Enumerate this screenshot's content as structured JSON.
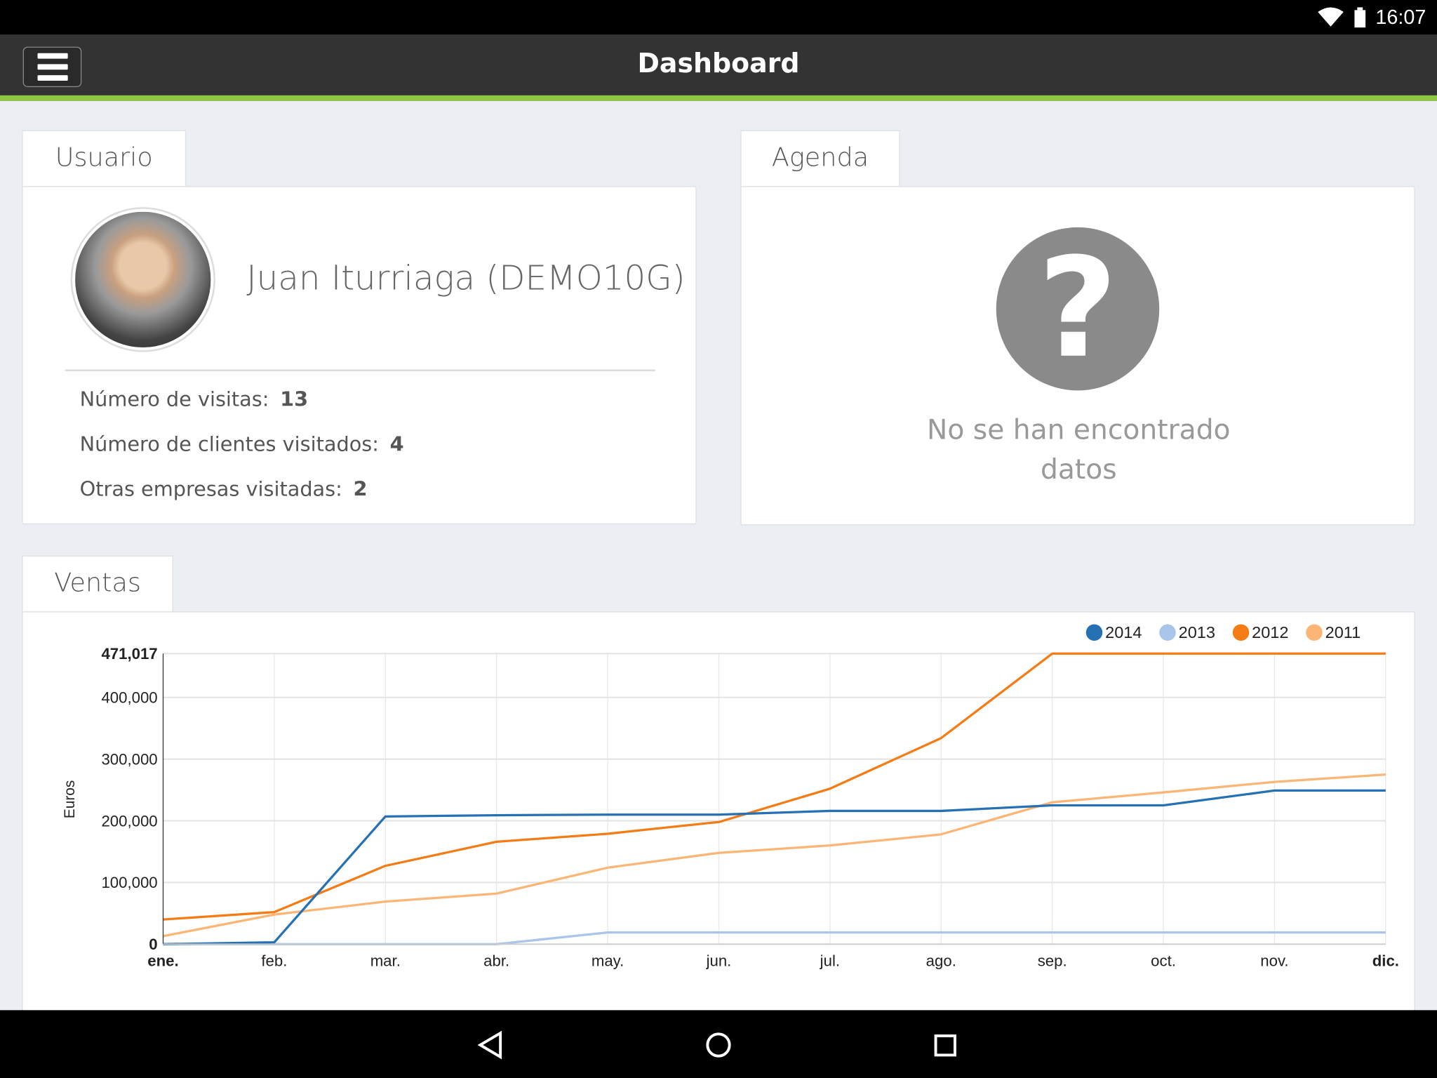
{
  "status_bar": {
    "time": "16:07",
    "icons": [
      "wifi-icon",
      "battery-icon"
    ]
  },
  "app_bar": {
    "title": "Dashboard",
    "menu_icon": "hamburger-menu-icon"
  },
  "usuario": {
    "tab_label": "Usuario",
    "name": "Juan Iturriaga (DEMO10G)",
    "stats": [
      {
        "label": "Número de visitas:",
        "value": "13"
      },
      {
        "label": "Número de clientes visitados:",
        "value": "4"
      },
      {
        "label": "Otras empresas visitadas:",
        "value": "2"
      }
    ]
  },
  "agenda": {
    "tab_label": "Agenda",
    "icon": "question-mark-icon",
    "empty_line1": "No se han encontrado",
    "empty_line2": "datos"
  },
  "ventas": {
    "tab_label": "Ventas"
  },
  "chart_data": {
    "type": "line",
    "ylabel": "Euros",
    "xlabel": "",
    "categories": [
      "ene.",
      "feb.",
      "mar.",
      "abr.",
      "may.",
      "jun.",
      "jul.",
      "ago.",
      "sep.",
      "oct.",
      "nov.",
      "dic."
    ],
    "ylim": [
      0,
      471017
    ],
    "yticks": [
      "0",
      "100,000",
      "200,000",
      "300,000",
      "400,000",
      "471,017"
    ],
    "ytick_values": [
      0,
      100000,
      200000,
      300000,
      400000,
      471017
    ],
    "grid": true,
    "legend_position": "top-right",
    "series": [
      {
        "name": "2014",
        "color": "#2571b3",
        "values": [
          0,
          3000,
          207000,
          209000,
          210000,
          210000,
          216000,
          216000,
          225000,
          225000,
          249000,
          249000
        ]
      },
      {
        "name": "2013",
        "color": "#a9c5ea",
        "values": [
          0,
          0,
          0,
          0,
          19000,
          19000,
          19000,
          19000,
          19000,
          19000,
          19000,
          19000
        ]
      },
      {
        "name": "2012",
        "color": "#f57c15",
        "values": [
          40000,
          52000,
          127000,
          166000,
          179000,
          198000,
          252000,
          334000,
          471017,
          471017,
          471017,
          471017
        ]
      },
      {
        "name": "2011",
        "color": "#fbb676",
        "values": [
          13000,
          48000,
          69000,
          82000,
          124000,
          148000,
          160000,
          178000,
          230000,
          246000,
          263000,
          275000
        ]
      }
    ]
  },
  "nav_bar": {
    "icons": [
      "back-icon",
      "home-icon",
      "recents-icon"
    ]
  }
}
